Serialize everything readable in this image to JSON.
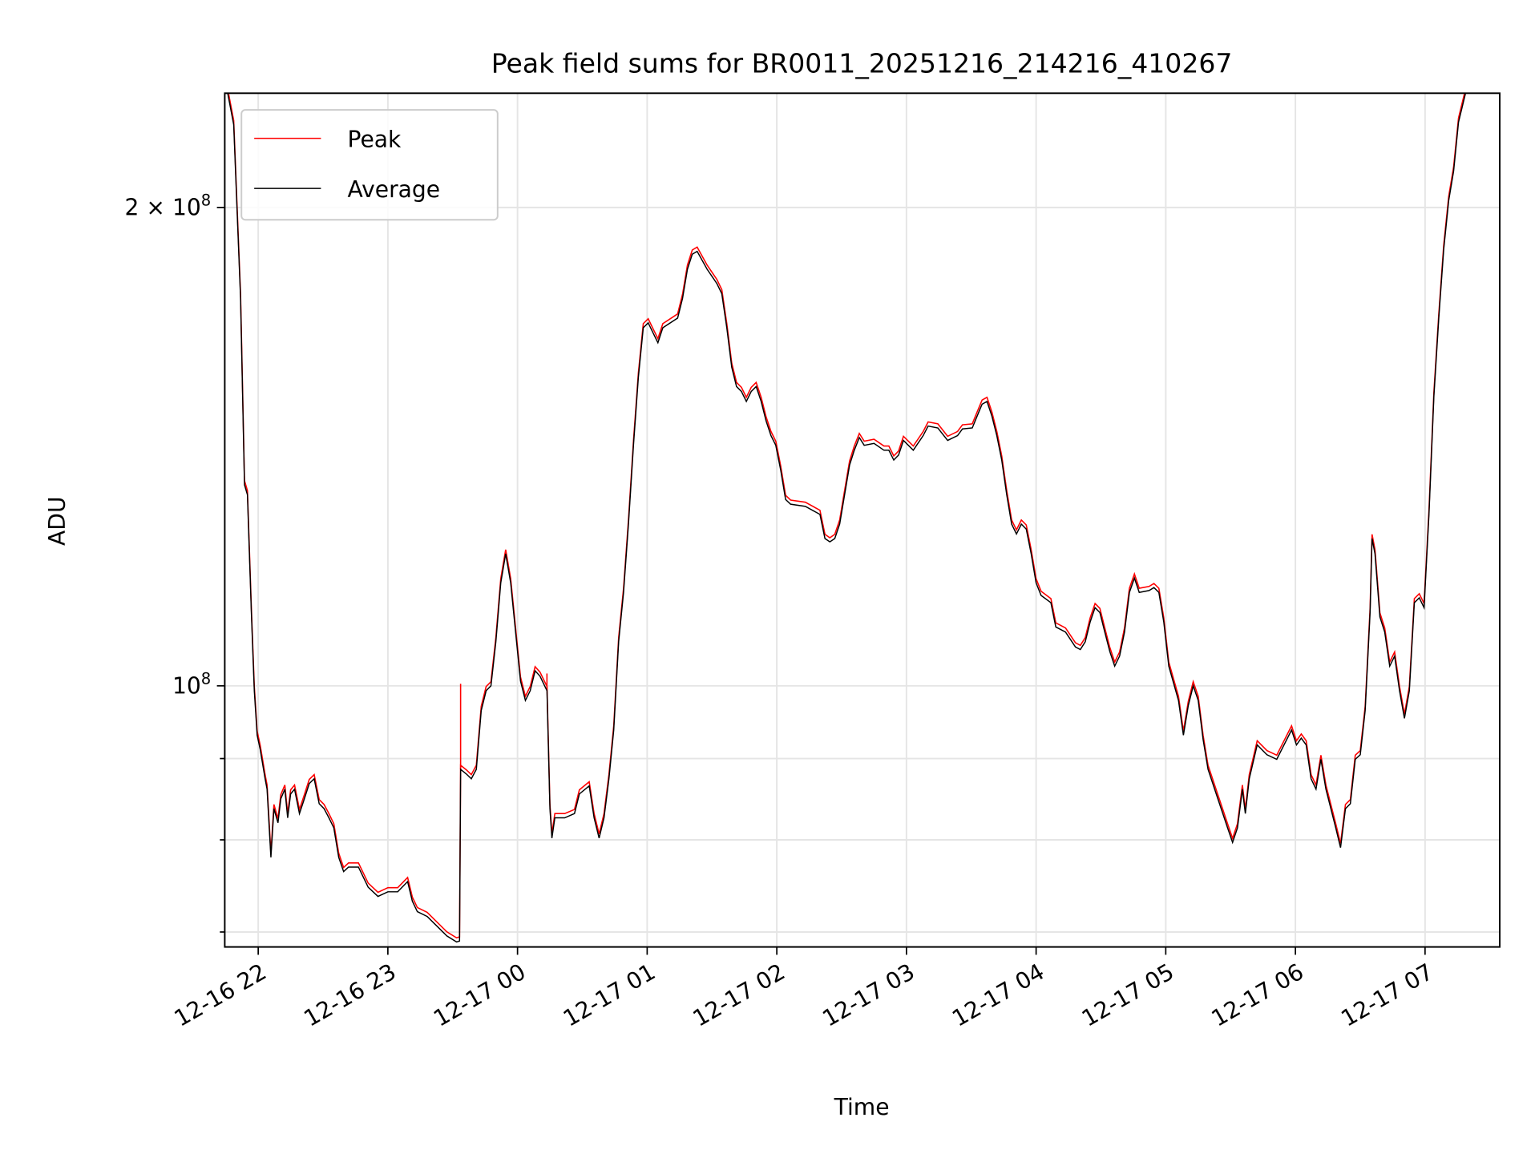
{
  "chart_data": {
    "type": "line",
    "title": "Peak field sums for BR0011_20251216_214216_410267",
    "xlabel": "Time",
    "ylabel": "ADU",
    "x_unit": "hours since 12-16 00:00",
    "y_unit": "ADU x 1e6",
    "yscale": "log",
    "xlim": [
      21.742,
      31.576
    ],
    "ylim": [
      68.5,
      236
    ],
    "grid": true,
    "legend_position": "top-left",
    "x_ticks": [
      {
        "value": 22,
        "label": "12-16 22"
      },
      {
        "value": 23,
        "label": "12-16 23"
      },
      {
        "value": 24,
        "label": "12-17 00"
      },
      {
        "value": 25,
        "label": "12-17 01"
      },
      {
        "value": 26,
        "label": "12-17 02"
      },
      {
        "value": 27,
        "label": "12-17 03"
      },
      {
        "value": 28,
        "label": "12-17 04"
      },
      {
        "value": 29,
        "label": "12-17 05"
      },
      {
        "value": 30,
        "label": "12-17 06"
      },
      {
        "value": 31,
        "label": "12-17 07"
      }
    ],
    "y_major_ticks": [
      {
        "value": 100,
        "base": "10",
        "exp": "8",
        "prefix": ""
      },
      {
        "value": 200,
        "base": "10",
        "exp": "8",
        "prefix": "2 × "
      }
    ],
    "y_minor_ticks": [
      70,
      80,
      90
    ],
    "colors": {
      "Peak": "#ff0000",
      "Average": "#000000"
    },
    "series": [
      {
        "name": "Peak",
        "relative_to_average": 1.006,
        "spikes": [
          [
            23.561,
            100.3
          ],
          [
            24.227,
            101.8
          ]
        ]
      },
      {
        "name": "Average",
        "points": [
          [
            21.765,
            236
          ],
          [
            21.811,
            225.5
          ],
          [
            21.864,
            175.3
          ],
          [
            21.894,
            133.8
          ],
          [
            21.917,
            131.9
          ],
          [
            21.947,
            111.2
          ],
          [
            21.97,
            99.3
          ],
          [
            21.992,
            93.1
          ],
          [
            22.015,
            91.2
          ],
          [
            22.053,
            87.4
          ],
          [
            22.068,
            86.1
          ],
          [
            22.098,
            78.0
          ],
          [
            22.121,
            83.7
          ],
          [
            22.152,
            82.0
          ],
          [
            22.174,
            84.9
          ],
          [
            22.205,
            86.1
          ],
          [
            22.227,
            82.6
          ],
          [
            22.25,
            85.5
          ],
          [
            22.28,
            86.1
          ],
          [
            22.318,
            83.1
          ],
          [
            22.356,
            84.9
          ],
          [
            22.394,
            86.8
          ],
          [
            22.432,
            87.4
          ],
          [
            22.47,
            84.3
          ],
          [
            22.508,
            83.7
          ],
          [
            22.545,
            82.6
          ],
          [
            22.583,
            81.4
          ],
          [
            22.621,
            78.0
          ],
          [
            22.659,
            76.4
          ],
          [
            22.697,
            76.9
          ],
          [
            22.773,
            76.9
          ],
          [
            22.848,
            74.7
          ],
          [
            22.924,
            73.7
          ],
          [
            23.0,
            74.2
          ],
          [
            23.076,
            74.2
          ],
          [
            23.152,
            75.3
          ],
          [
            23.189,
            73.2
          ],
          [
            23.227,
            72.1
          ],
          [
            23.303,
            71.6
          ],
          [
            23.379,
            70.6
          ],
          [
            23.455,
            69.6
          ],
          [
            23.53,
            69.0
          ],
          [
            23.553,
            69.1
          ],
          [
            23.561,
            88.6
          ],
          [
            23.606,
            88.0
          ],
          [
            23.644,
            87.4
          ],
          [
            23.682,
            88.6
          ],
          [
            23.72,
            96.5
          ],
          [
            23.758,
            99.3
          ],
          [
            23.795,
            100
          ],
          [
            23.833,
            106.6
          ],
          [
            23.871,
            116.1
          ],
          [
            23.909,
            121.1
          ],
          [
            23.947,
            116.1
          ],
          [
            23.985,
            108.1
          ],
          [
            24.023,
            100.7
          ],
          [
            24.061,
            97.9
          ],
          [
            24.098,
            99.3
          ],
          [
            24.136,
            102.2
          ],
          [
            24.174,
            101.4
          ],
          [
            24.227,
            99.3
          ],
          [
            24.25,
            83.7
          ],
          [
            24.265,
            80.2
          ],
          [
            24.288,
            82.6
          ],
          [
            24.364,
            82.6
          ],
          [
            24.439,
            83.1
          ],
          [
            24.477,
            85.5
          ],
          [
            24.553,
            86.5
          ],
          [
            24.591,
            82.6
          ],
          [
            24.629,
            80.2
          ],
          [
            24.667,
            82.6
          ],
          [
            24.705,
            87.4
          ],
          [
            24.742,
            93.8
          ],
          [
            24.78,
            106.6
          ],
          [
            24.818,
            114.5
          ],
          [
            24.856,
            126.4
          ],
          [
            24.894,
            141.7
          ],
          [
            24.932,
            156.4
          ],
          [
            24.97,
            168.0
          ],
          [
            25.008,
            169.2
          ],
          [
            25.045,
            166.8
          ],
          [
            25.083,
            164.4
          ],
          [
            25.121,
            168.0
          ],
          [
            25.235,
            170.4
          ],
          [
            25.273,
            175.3
          ],
          [
            25.311,
            182.9
          ],
          [
            25.348,
            186.9
          ],
          [
            25.386,
            187.7
          ],
          [
            25.462,
            182.9
          ],
          [
            25.538,
            179.1
          ],
          [
            25.576,
            176.5
          ],
          [
            25.614,
            168.0
          ],
          [
            25.652,
            158.7
          ],
          [
            25.689,
            154.3
          ],
          [
            25.727,
            153.2
          ],
          [
            25.765,
            151.0
          ],
          [
            25.803,
            153.2
          ],
          [
            25.841,
            154.3
          ],
          [
            25.879,
            151.0
          ],
          [
            25.917,
            146.8
          ],
          [
            25.955,
            143.7
          ],
          [
            25.992,
            141.7
          ],
          [
            26.03,
            136.7
          ],
          [
            26.068,
            131.0
          ],
          [
            26.106,
            130.1
          ],
          [
            26.22,
            129.7
          ],
          [
            26.333,
            128.2
          ],
          [
            26.371,
            123.8
          ],
          [
            26.409,
            123.2
          ],
          [
            26.447,
            123.8
          ],
          [
            26.485,
            126.4
          ],
          [
            26.523,
            131.9
          ],
          [
            26.561,
            137.7
          ],
          [
            26.598,
            140.7
          ],
          [
            26.636,
            143.3
          ],
          [
            26.674,
            141.7
          ],
          [
            26.75,
            142.1
          ],
          [
            26.826,
            140.7
          ],
          [
            26.864,
            140.7
          ],
          [
            26.902,
            138.7
          ],
          [
            26.939,
            139.7
          ],
          [
            26.977,
            142.7
          ],
          [
            27.053,
            140.7
          ],
          [
            27.129,
            143.7
          ],
          [
            27.167,
            145.7
          ],
          [
            27.242,
            145.3
          ],
          [
            27.318,
            142.7
          ],
          [
            27.394,
            143.7
          ],
          [
            27.432,
            145.1
          ],
          [
            27.508,
            145.3
          ],
          [
            27.545,
            147.8
          ],
          [
            27.583,
            150.4
          ],
          [
            27.621,
            151.0
          ],
          [
            27.659,
            147.8
          ],
          [
            27.697,
            143.7
          ],
          [
            27.735,
            138.7
          ],
          [
            27.773,
            131.9
          ],
          [
            27.811,
            126.4
          ],
          [
            27.848,
            124.6
          ],
          [
            27.886,
            126.4
          ],
          [
            27.924,
            125.5
          ],
          [
            27.962,
            121.1
          ],
          [
            28.0,
            116.1
          ],
          [
            28.038,
            114.0
          ],
          [
            28.114,
            112.8
          ],
          [
            28.152,
            108.9
          ],
          [
            28.227,
            108.1
          ],
          [
            28.303,
            105.8
          ],
          [
            28.341,
            105.4
          ],
          [
            28.379,
            106.6
          ],
          [
            28.417,
            109.7
          ],
          [
            28.455,
            112.0
          ],
          [
            28.492,
            111.2
          ],
          [
            28.53,
            108.1
          ],
          [
            28.568,
            105.1
          ],
          [
            28.606,
            102.9
          ],
          [
            28.644,
            104.4
          ],
          [
            28.682,
            108.1
          ],
          [
            28.72,
            114.5
          ],
          [
            28.758,
            116.9
          ],
          [
            28.795,
            114.5
          ],
          [
            28.871,
            114.8
          ],
          [
            28.909,
            115.3
          ],
          [
            28.947,
            114.5
          ],
          [
            28.985,
            109.7
          ],
          [
            29.023,
            102.9
          ],
          [
            29.098,
            97.9
          ],
          [
            29.136,
            93.1
          ],
          [
            29.174,
            97.2
          ],
          [
            29.212,
            100
          ],
          [
            29.25,
            97.9
          ],
          [
            29.288,
            92.5
          ],
          [
            29.326,
            88.6
          ],
          [
            29.402,
            84.9
          ],
          [
            29.477,
            81.4
          ],
          [
            29.515,
            79.7
          ],
          [
            29.553,
            81.4
          ],
          [
            29.591,
            86.1
          ],
          [
            29.614,
            83.1
          ],
          [
            29.644,
            87.4
          ],
          [
            29.705,
            91.8
          ],
          [
            29.78,
            90.5
          ],
          [
            29.856,
            89.9
          ],
          [
            29.97,
            93.8
          ],
          [
            30.008,
            91.8
          ],
          [
            30.045,
            92.7
          ],
          [
            30.083,
            91.8
          ],
          [
            30.121,
            87.4
          ],
          [
            30.159,
            86.1
          ],
          [
            30.197,
            89.9
          ],
          [
            30.235,
            86.1
          ],
          [
            30.311,
            81.4
          ],
          [
            30.348,
            79.1
          ],
          [
            30.386,
            83.7
          ],
          [
            30.424,
            84.3
          ],
          [
            30.462,
            89.9
          ],
          [
            30.5,
            90.5
          ],
          [
            30.538,
            96.5
          ],
          [
            30.576,
            111.2
          ],
          [
            30.591,
            123.8
          ],
          [
            30.614,
            121.1
          ],
          [
            30.652,
            110.5
          ],
          [
            30.689,
            108.1
          ],
          [
            30.727,
            102.9
          ],
          [
            30.765,
            104.4
          ],
          [
            30.803,
            99.3
          ],
          [
            30.841,
            95.4
          ],
          [
            30.879,
            99.3
          ],
          [
            30.917,
            112.8
          ],
          [
            30.955,
            113.6
          ],
          [
            30.992,
            112.0
          ],
          [
            31.03,
            128.2
          ],
          [
            31.068,
            152.1
          ],
          [
            31.106,
            170.4
          ],
          [
            31.144,
            188.2
          ],
          [
            31.182,
            202.0
          ],
          [
            31.22,
            210.8
          ],
          [
            31.258,
            226.3
          ],
          [
            31.311,
            235.8
          ]
        ]
      }
    ]
  }
}
